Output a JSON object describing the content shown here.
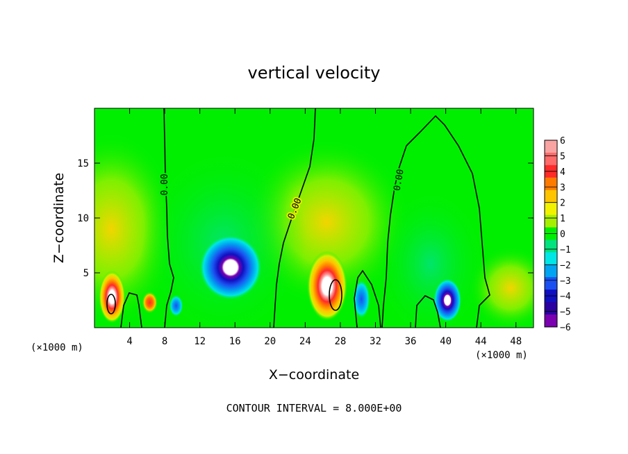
{
  "chart_data": {
    "type": "heatmap",
    "title": "vertical velocity",
    "xlabel": "X−coordinate",
    "ylabel": "Z−coordinate",
    "x_unit_left": "(×1000 m)",
    "x_unit_right": "(×1000 m)",
    "xlim": [
      0,
      50
    ],
    "ylim": [
      0,
      20
    ],
    "x_ticks": [
      4,
      8,
      12,
      16,
      20,
      24,
      28,
      32,
      36,
      40,
      44,
      48
    ],
    "x_tick_labels": [
      "4",
      "8",
      "12",
      "16",
      "20",
      "24",
      "28",
      "32",
      "36",
      "40",
      "44",
      "48"
    ],
    "y_ticks": [
      5,
      10,
      15
    ],
    "y_tick_labels": [
      "5",
      "10",
      "15"
    ],
    "contour_level_label": "0.00",
    "contour_interval_text": "CONTOUR INTERVAL = 8.000E+00",
    "colorbar": {
      "min": -6,
      "max": 6,
      "labels": [
        "6",
        "5",
        "4",
        "3",
        "2",
        "1",
        "0",
        "−1",
        "−2",
        "−3",
        "−4",
        "−5",
        "−6"
      ],
      "colors": [
        "#f9a3a3",
        "#ff6a6a",
        "#ff2a2a",
        "#ff7b00",
        "#ffc400",
        "#f2f200",
        "#a6ef00",
        "#00ef00",
        "#00e37e",
        "#00e6e6",
        "#00a4f0",
        "#1b50f0",
        "#1010c0",
        "#2a00a0",
        "#7a00b0"
      ]
    },
    "features": [
      {
        "name": "updraft",
        "x": 2.0,
        "z": 2.8,
        "w_peak": 7.5,
        "sx": 1.5,
        "sz": 2.4
      },
      {
        "name": "updraft",
        "x": 6.3,
        "z": 2.3,
        "w_peak": 4.2,
        "sx": 0.9,
        "sz": 1.0
      },
      {
        "name": "updraft",
        "x": 26.5,
        "z": 3.8,
        "w_peak": 7.8,
        "sx": 2.3,
        "sz": 3.2
      },
      {
        "name": "downdraft",
        "x": 15.5,
        "z": 5.5,
        "w_peak": -7.2,
        "sx": 3.6,
        "sz": 3.0
      },
      {
        "name": "downdraft",
        "x": 40.2,
        "z": 2.5,
        "w_peak": -5.8,
        "sx": 1.6,
        "sz": 2.0
      },
      {
        "name": "downdraft",
        "x": 30.4,
        "z": 2.6,
        "w_peak": -3.0,
        "sx": 1.0,
        "sz": 1.8
      },
      {
        "name": "downdraft",
        "x": 9.3,
        "z": 2.0,
        "w_peak": -2.2,
        "sx": 0.8,
        "sz": 1.0
      }
    ]
  }
}
